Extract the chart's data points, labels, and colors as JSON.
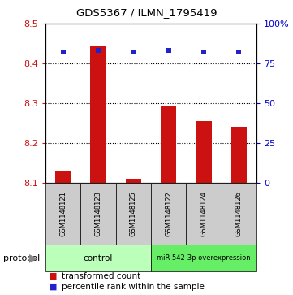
{
  "title": "GDS5367 / ILMN_1795419",
  "samples": [
    "GSM1148121",
    "GSM1148123",
    "GSM1148125",
    "GSM1148122",
    "GSM1148124",
    "GSM1148126"
  ],
  "transformed_counts": [
    8.13,
    8.445,
    8.11,
    8.295,
    8.255,
    8.24
  ],
  "percentile_ranks": [
    82,
    83,
    82,
    83,
    82,
    82
  ],
  "ylim_left": [
    8.1,
    8.5
  ],
  "ylim_right": [
    0,
    100
  ],
  "yticks_left": [
    8.1,
    8.2,
    8.3,
    8.4,
    8.5
  ],
  "yticks_right": [
    0,
    25,
    50,
    75,
    100
  ],
  "bar_color": "#cc1111",
  "dot_color": "#2222cc",
  "control_color": "#bbffbb",
  "mir_color": "#66ee66",
  "bar_bottom": 8.1,
  "figsize": [
    3.61,
    3.63
  ],
  "dpi": 100
}
